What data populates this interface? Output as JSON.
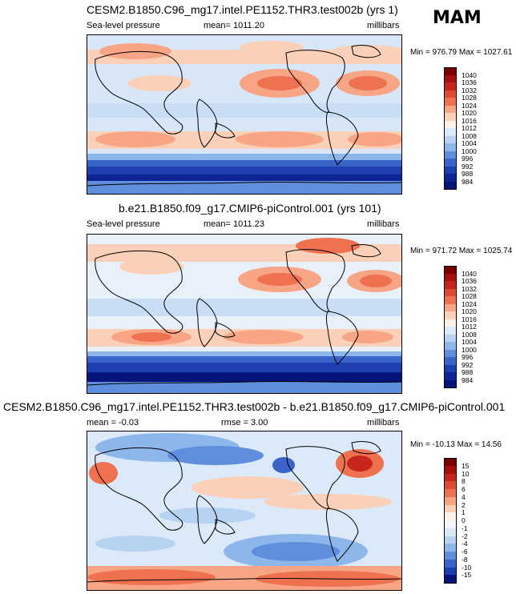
{
  "season": "MAM",
  "panels": [
    {
      "title": "CESM2.B1850.C96_mg17.intel.PE1152.THR3.test002b (yrs 1)",
      "left_label": "Sea-level pressure",
      "mid_label": "mean= 1011.20",
      "right_label": "millibars",
      "minmax": "Min = 976.79 Max = 1027.61",
      "colorbar": {
        "labels": [
          "1040",
          "1036",
          "1032",
          "1028",
          "1024",
          "1020",
          "1016",
          "1012",
          "1008",
          "1004",
          "1000",
          "996",
          "992",
          "988",
          "984"
        ],
        "colors": [
          "#7a0000",
          "#a50f0f",
          "#c8261d",
          "#df4a32",
          "#ee7150",
          "#f7a584",
          "#fbd0b8",
          "#fdf0e6",
          "#dbe9f8",
          "#b7d3f2",
          "#8db6ea",
          "#5f8fdc",
          "#3a64c9",
          "#1e3fae",
          "#0c2494",
          "#06137a"
        ]
      }
    },
    {
      "title": "b.e21.B1850.f09_g17.CMIP6-piControl.001 (yrs 101)",
      "left_label": "Sea-level pressure",
      "mid_label": "mean= 1011.23",
      "right_label": "millibars",
      "minmax": "Min = 971.72 Max = 1025.74",
      "colorbar": {
        "labels": [
          "1040",
          "1036",
          "1032",
          "1028",
          "1024",
          "1020",
          "1016",
          "1012",
          "1008",
          "1004",
          "1000",
          "996",
          "992",
          "988",
          "984"
        ],
        "colors": [
          "#7a0000",
          "#a50f0f",
          "#c8261d",
          "#df4a32",
          "#ee7150",
          "#f7a584",
          "#fbd0b8",
          "#fdf0e6",
          "#dbe9f8",
          "#b7d3f2",
          "#8db6ea",
          "#5f8fdc",
          "#3a64c9",
          "#1e3fae",
          "#0c2494",
          "#06137a"
        ]
      }
    },
    {
      "title": "CESM2.B1850.C96_mg17.intel.PE1152.THR3.test002b - b.e21.B1850.f09_g17.CMIP6-piControl.001",
      "left_label": "mean =  -0.03",
      "mid_label": "rmse =   3.00",
      "right_label": "millibars",
      "minmax": "Min = -10.13 Max =  14.56",
      "colorbar": {
        "labels": [
          "15",
          "10",
          "8",
          "6",
          "4",
          "2",
          "1",
          "0",
          "-1",
          "-2",
          "-4",
          "-6",
          "-8",
          "-10",
          "-15"
        ],
        "colors": [
          "#7a0000",
          "#a50f0f",
          "#c8261d",
          "#df4a32",
          "#ee7150",
          "#f7a584",
          "#fbd0b8",
          "#fdf0e6",
          "#f3f6fc",
          "#dbe9f8",
          "#b7d3f2",
          "#8db6ea",
          "#5f8fdc",
          "#3a64c9",
          "#1e3fae",
          "#06137a"
        ]
      }
    }
  ]
}
